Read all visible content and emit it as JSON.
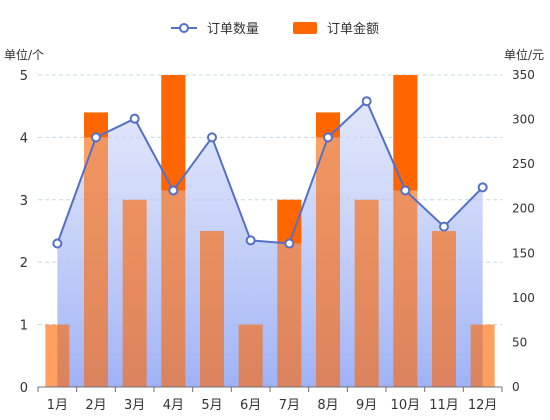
{
  "legend": {
    "line_label": "订单数量",
    "bar_label": "订单金额"
  },
  "axes": {
    "left_unit": "单位/个",
    "right_unit": "单位/元"
  },
  "colors": {
    "line": "#5470c6",
    "bar": "#ff6600",
    "area_top": "#c9d3f7",
    "area_bottom": "#9aaef5",
    "grid": "#c5d9e6",
    "axis_text": "#333333"
  },
  "chart_data": {
    "type": "bar",
    "categories": [
      "1月",
      "2月",
      "3月",
      "4月",
      "5月",
      "6月",
      "7月",
      "8月",
      "9月",
      "10月",
      "11月",
      "12月"
    ],
    "series": [
      {
        "name": "订单数量",
        "type": "line",
        "axis": "left",
        "values": [
          2.3,
          4.0,
          4.3,
          3.15,
          4.0,
          2.35,
          2.3,
          4.0,
          4.58,
          3.15,
          2.57,
          3.2
        ]
      },
      {
        "name": "订单金额",
        "type": "bar",
        "axis": "right",
        "values": [
          70,
          308,
          210,
          350,
          175,
          70,
          210,
          308,
          210,
          350,
          175,
          70
        ]
      }
    ],
    "y_left": {
      "min": 0,
      "max": 5,
      "ticks": [
        0,
        1,
        2,
        3,
        4,
        5
      ]
    },
    "y_right": {
      "min": 0,
      "max": 350,
      "ticks": [
        0,
        50,
        100,
        150,
        200,
        250,
        300,
        350
      ]
    },
    "grid": true,
    "legend_position": "top-center"
  }
}
